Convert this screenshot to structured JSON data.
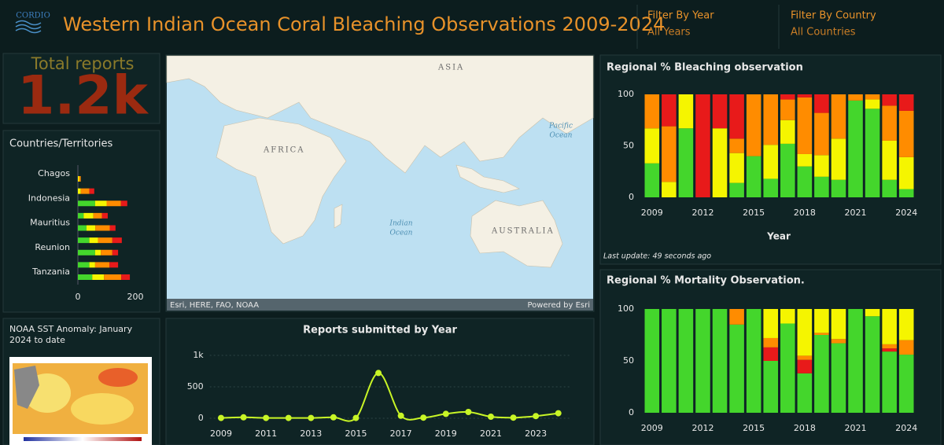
{
  "header": {
    "logo": "CORDIO",
    "title": "Western Indian Ocean Coral Bleaching Observations 2009-2024",
    "filters": [
      {
        "label": "Filter By Year",
        "value": "All Years"
      },
      {
        "label": "Filter By Country",
        "value": "All Countries"
      }
    ]
  },
  "total_reports": {
    "label": "Total reports",
    "value": "1.2k"
  },
  "countries_chart": {
    "type": "hbar",
    "stacked": true,
    "title": "Countries/Territories",
    "categories": [
      "Chagos",
      null,
      "Indonesia",
      null,
      "Mauritius",
      null,
      "Reunion",
      null,
      "Tanzania"
    ],
    "series": [
      {
        "color": "#44d62c",
        "values": [
          0,
          0,
          60,
          20,
          30,
          40,
          60,
          40,
          50
        ]
      },
      {
        "color": "#f5f500",
        "values": [
          4,
          10,
          40,
          34,
          31,
          30,
          20,
          20,
          41
        ]
      },
      {
        "color": "#ff8c00",
        "values": [
          6,
          30,
          50,
          30,
          50,
          50,
          40,
          50,
          60
        ]
      },
      {
        "color": "#e81a1a",
        "values": [
          0,
          17,
          22,
          20,
          20,
          33,
          20,
          30,
          30
        ]
      }
    ],
    "xlim": [
      0,
      200
    ],
    "xticks": [
      0,
      200
    ]
  },
  "map": {
    "asia": "ASIA",
    "africa": "AFRICA",
    "pacific": [
      "Pacific",
      "Ocean"
    ],
    "indian": [
      "Indian",
      "Ocean"
    ],
    "australia": "AUSTRALIA",
    "attribution": "Esri, HERE, FAO, NOAA",
    "credit": "Powered by Esri"
  },
  "sst": {
    "title": "NOAA SST Anomaly: January 2024 to date"
  },
  "reports_chart": {
    "type": "line",
    "title": "Reports submitted by Year",
    "x": [
      2009,
      2010,
      2011,
      2012,
      2013,
      2014,
      2015,
      2016,
      2017,
      2018,
      2019,
      2020,
      2021,
      2022,
      2023,
      2024
    ],
    "series": [
      {
        "color": "#c8f526",
        "values": [
          5,
          15,
          5,
          5,
          5,
          15,
          5,
          720,
          40,
          10,
          70,
          100,
          25,
          10,
          35,
          80
        ]
      }
    ],
    "xlim": [
      2008.5,
      2024.5
    ],
    "xticks": [
      2009,
      2011,
      2013,
      2015,
      2017,
      2019,
      2021,
      2023
    ],
    "ylim": [
      0,
      1000
    ],
    "yticks": [
      0,
      500,
      {
        "value": 1000,
        "label": "1k"
      }
    ]
  },
  "bleaching_chart": {
    "type": "bar",
    "stacked": true,
    "title": "Regional % Bleaching observation",
    "categories": [
      2009,
      null,
      null,
      2012,
      null,
      null,
      2015,
      null,
      null,
      2018,
      null,
      null,
      2021,
      null,
      null,
      2024
    ],
    "series": [
      {
        "color": "#44d62c",
        "values": [
          33,
          0,
          67,
          0,
          0,
          14,
          40,
          18,
          52,
          30,
          20,
          17,
          94,
          86,
          17,
          8
        ]
      },
      {
        "color": "#f5f500",
        "values": [
          34,
          15,
          33,
          0,
          67,
          29,
          0,
          33,
          23,
          12,
          21,
          40,
          0,
          9,
          38,
          31
        ]
      },
      {
        "color": "#ff8c00",
        "values": [
          33,
          54,
          0,
          0,
          0,
          14,
          60,
          49,
          20,
          55,
          41,
          43,
          6,
          5,
          34,
          45
        ]
      },
      {
        "color": "#e81a1a",
        "values": [
          0,
          31,
          0,
          100,
          33,
          43,
          0,
          0,
          5,
          3,
          18,
          0,
          0,
          0,
          11,
          16
        ]
      }
    ],
    "ylim": [
      0,
      100
    ],
    "yticks": [
      0,
      50,
      100
    ],
    "xlabel": "Year",
    "note": "Last update: 49 seconds ago"
  },
  "mortality_chart": {
    "type": "bar",
    "stacked": true,
    "title": "Regional % Mortality Observation.",
    "categories": [
      2009,
      null,
      null,
      2012,
      null,
      null,
      2015,
      null,
      null,
      2018,
      null,
      null,
      2021,
      null,
      null,
      2024
    ],
    "series": [
      {
        "color": "#44d62c",
        "values": [
          100,
          100,
          100,
          100,
          100,
          85,
          100,
          50,
          86,
          38,
          75,
          67,
          100,
          93,
          59,
          56
        ]
      },
      {
        "color": "#e81a1a",
        "values": [
          0,
          0,
          0,
          0,
          0,
          0,
          0,
          13,
          0,
          13,
          0,
          0,
          0,
          0,
          3,
          0
        ]
      },
      {
        "color": "#ff8c00",
        "values": [
          0,
          0,
          0,
          0,
          0,
          15,
          0,
          9,
          0,
          4,
          2,
          4,
          0,
          0,
          4,
          14
        ]
      },
      {
        "color": "#f5f500",
        "values": [
          0,
          0,
          0,
          0,
          0,
          0,
          0,
          28,
          14,
          45,
          23,
          29,
          0,
          7,
          34,
          30
        ]
      }
    ],
    "ylim": [
      0,
      100
    ],
    "yticks": [
      0,
      50,
      100
    ]
  }
}
